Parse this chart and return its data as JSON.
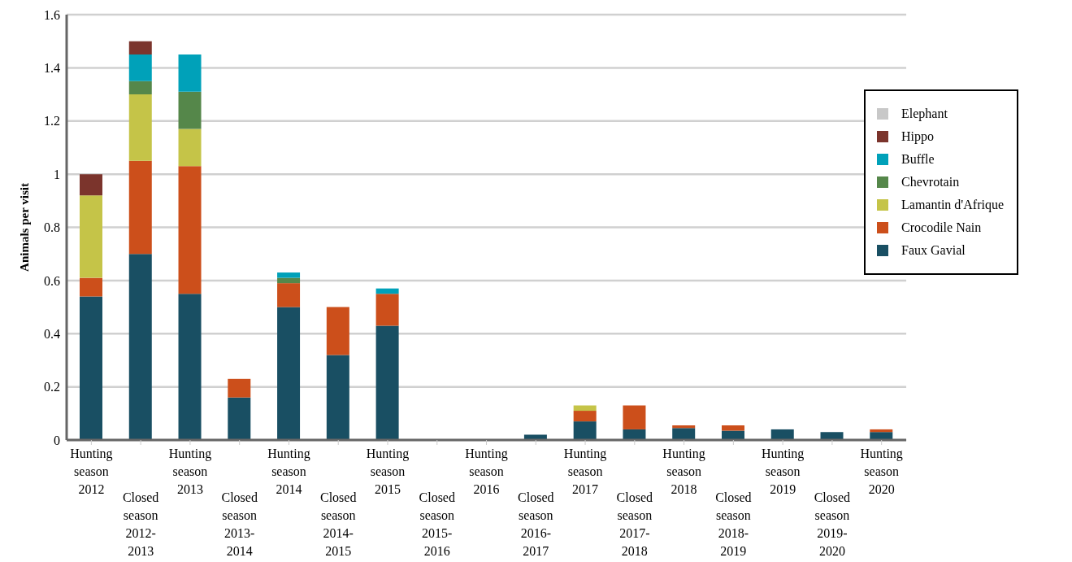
{
  "chart_data": {
    "type": "bar",
    "stacked": true,
    "ylabel": "Animals per visit",
    "categories": [
      "Hunting season 2012",
      "Closed season 2012-2013",
      "Hunting season 2013",
      "Closed season 2013-2014",
      "Hunting season 2014",
      "Closed season 2014-2015",
      "Hunting season 2015",
      "Closed season 2015-2016",
      "Hunting season 2016",
      "Closed season 2016-2017",
      "Hunting season 2017",
      "Closed season 2017-2018",
      "Hunting season 2018",
      "Closed season 2018-2019",
      "Hunting season 2019",
      "Closed season 2019-2020",
      "Hunting season 2020"
    ],
    "series": [
      {
        "name": "Faux Gavial",
        "color": "#194f63",
        "values": [
          0.54,
          0.7,
          0.55,
          0.16,
          0.5,
          0.32,
          0.43,
          0,
          0,
          0.02,
          0.07,
          0.04,
          0.045,
          0.035,
          0.04,
          0.03,
          0.03
        ]
      },
      {
        "name": "Crocodile Nain",
        "color": "#cc4f1b",
        "values": [
          0.07,
          0.35,
          0.48,
          0.07,
          0.09,
          0.18,
          0.12,
          0,
          0,
          0,
          0.04,
          0.09,
          0.01,
          0.02,
          0,
          0,
          0.01
        ]
      },
      {
        "name": "Lamantin d'Afrique",
        "color": "#c5c448",
        "values": [
          0.31,
          0.25,
          0.14,
          0,
          0,
          0,
          0,
          0,
          0,
          0,
          0.02,
          0,
          0,
          0,
          0,
          0,
          0
        ]
      },
      {
        "name": "Chevrotain",
        "color": "#55874a",
        "values": [
          0,
          0.05,
          0.14,
          0,
          0.02,
          0,
          0,
          0,
          0,
          0,
          0,
          0,
          0,
          0,
          0,
          0,
          0
        ]
      },
      {
        "name": "Buffle",
        "color": "#00a1b9",
        "values": [
          0,
          0.1,
          0.14,
          0,
          0.02,
          0,
          0.02,
          0,
          0,
          0,
          0,
          0,
          0,
          0,
          0,
          0,
          0
        ]
      },
      {
        "name": "Hippo",
        "color": "#7b342c",
        "values": [
          0.08,
          0.05,
          0,
          0,
          0,
          0,
          0,
          0,
          0,
          0,
          0,
          0,
          0,
          0,
          0,
          0,
          0
        ]
      },
      {
        "name": "Elephant",
        "color": "#c8c8c8",
        "values": [
          0,
          0,
          0,
          0,
          0,
          0,
          0,
          0,
          0,
          0,
          0,
          0,
          0,
          0,
          0,
          0,
          0
        ]
      }
    ],
    "ylim": [
      0,
      1.6
    ],
    "yticks": [
      0,
      0.2,
      0.4,
      0.6,
      0.8,
      1,
      1.2,
      1.4,
      1.6
    ],
    "grid": "y",
    "legend": "top right"
  }
}
